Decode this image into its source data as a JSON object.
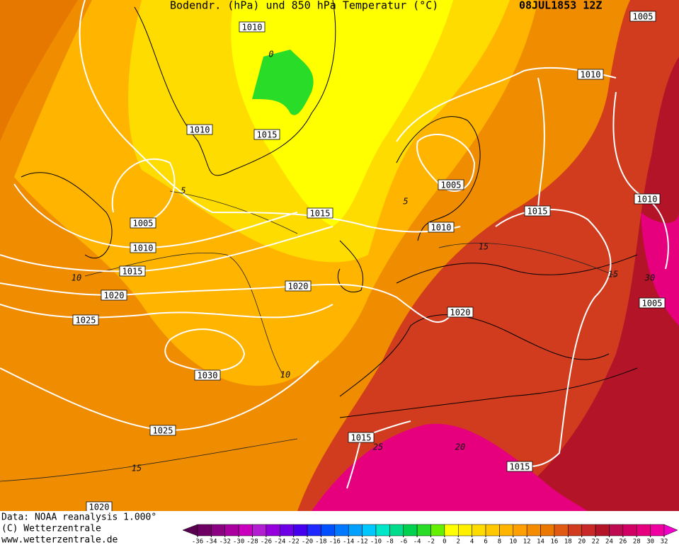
{
  "header": {
    "title": "Bodendr. (hPa) und 850 hPa Temperatur (°C)",
    "date": "08JUL1853 12Z"
  },
  "isobar_labels": [
    "1010",
    "1005",
    "1010",
    "1010",
    "1015",
    "1005",
    "1015",
    "1015",
    "1010",
    "1010",
    "1005",
    "1010",
    "1015",
    "1020",
    "1020",
    "1025",
    "1020",
    "1005",
    "1030",
    "1025",
    "1015",
    "1015",
    "1020"
  ],
  "temperature_labels": [
    "0",
    "5",
    "5",
    "10",
    "10",
    "15",
    "15",
    "15",
    "20",
    "25",
    "30"
  ],
  "footer": [
    "Data: NOAA reanalysis 1.000°",
    "(C) Wetterzentrale",
    "www.wetterzentrale.de"
  ],
  "colorbar": {
    "ticks": [
      -36,
      -34,
      -32,
      -30,
      -28,
      -26,
      -24,
      -22,
      -20,
      -18,
      -16,
      -14,
      -12,
      -10,
      -8,
      -6,
      -4,
      -2,
      0,
      2,
      4,
      6,
      8,
      10,
      12,
      14,
      16,
      18,
      20,
      22,
      24,
      26,
      28,
      30,
      32
    ],
    "colors": [
      "#5a0050",
      "#6e0064",
      "#8c0082",
      "#aa00a0",
      "#c800be",
      "#b41ed2",
      "#9600dc",
      "#6e00e6",
      "#4600f0",
      "#1e28ff",
      "#0050ff",
      "#0078ff",
      "#00a0ff",
      "#00c8ff",
      "#00e6c8",
      "#00dc8c",
      "#00d250",
      "#28dc28",
      "#64f000",
      "#ffff00",
      "#fff000",
      "#ffdc00",
      "#ffc800",
      "#ffb400",
      "#ffa000",
      "#f58c00",
      "#eb7800",
      "#e15a14",
      "#d23c1e",
      "#c82828",
      "#b41428",
      "#be0a50",
      "#d20064",
      "#e6007e",
      "#f000a0",
      "#f000c8"
    ]
  }
}
